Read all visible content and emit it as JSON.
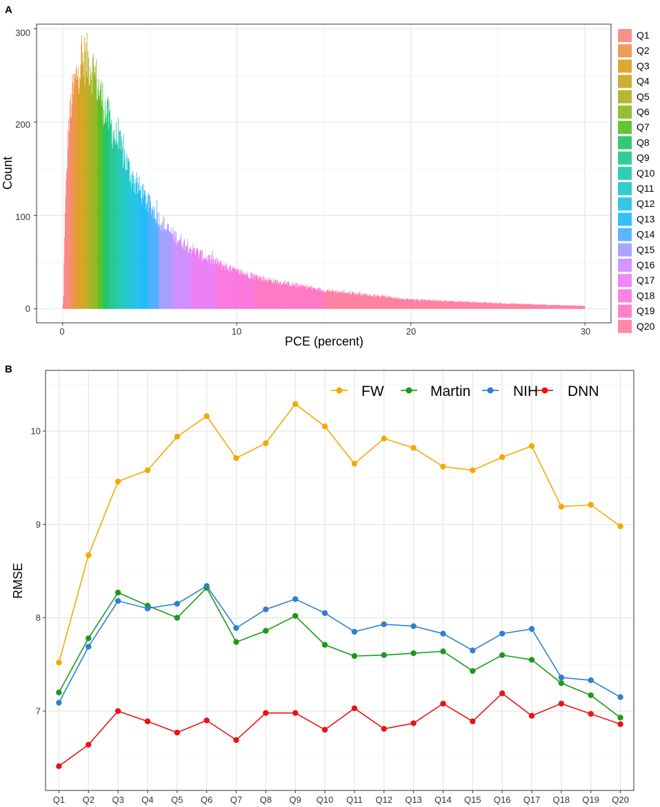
{
  "chart_data": [
    {
      "panel": "A",
      "type": "histogram",
      "xlabel": "PCE (percent)",
      "ylabel": "Count",
      "xlim": [
        -1.5,
        31.5
      ],
      "ylim": [
        -15,
        305
      ],
      "xticks": [
        0,
        10,
        20,
        30
      ],
      "yticks": [
        0,
        100,
        200,
        300
      ],
      "legend_entries": [
        "Q1",
        "Q2",
        "Q3",
        "Q4",
        "Q5",
        "Q6",
        "Q7",
        "Q8",
        "Q9",
        "Q10",
        "Q11",
        "Q12",
        "Q13",
        "Q14",
        "Q15",
        "Q16",
        "Q17",
        "Q18",
        "Q19",
        "Q20"
      ],
      "legend_colors": [
        "#F8766D",
        "#EA8331",
        "#D89000",
        "#C09B00",
        "#A3A500",
        "#7CAE00",
        "#39B600",
        "#00BB4E",
        "#00BF7D",
        "#00C1A3",
        "#00BFC4",
        "#00BAE0",
        "#00B0F6",
        "#35A2FF",
        "#9590FF",
        "#C77CFF",
        "#E76BF3",
        "#FA62DB",
        "#FF62BC",
        "#FF6C91"
      ],
      "quantile_breaks": [
        0,
        0.45,
        0.8,
        1.1,
        1.4,
        1.7,
        2.0,
        2.3,
        2.65,
        3.0,
        3.4,
        3.85,
        4.35,
        4.9,
        5.5,
        6.3,
        7.3,
        8.8,
        11.0,
        15.0,
        30.0
      ],
      "bin_width_percent": 0.03,
      "distribution": {
        "x": [
          0,
          0.05,
          0.1,
          0.3,
          0.5,
          0.8,
          1.0,
          1.3,
          1.5,
          1.8,
          2.0,
          2.5,
          3.0,
          3.5,
          4.0,
          5.0,
          6.0,
          7.0,
          8.0,
          10.0,
          12.0,
          15.0,
          20.0,
          25.0,
          30.0
        ],
        "count": [
          0,
          15,
          80,
          185,
          222,
          250,
          262,
          268,
          265,
          255,
          240,
          210,
          185,
          165,
          140,
          110,
          85,
          70,
          57,
          40,
          30,
          20,
          10,
          6,
          3
        ]
      }
    },
    {
      "panel": "B",
      "type": "line",
      "xlabel": "",
      "ylabel": "RMSE",
      "categories": [
        "Q1",
        "Q2",
        "Q3",
        "Q4",
        "Q5",
        "Q6",
        "Q7",
        "Q8",
        "Q9",
        "Q10",
        "Q11",
        "Q12",
        "Q13",
        "Q14",
        "Q15",
        "Q16",
        "Q17",
        "Q18",
        "Q19",
        "Q20"
      ],
      "ylim": [
        6.15,
        10.65
      ],
      "yticks": [
        7,
        8,
        9,
        10
      ],
      "legend_position": "top-right",
      "series": [
        {
          "name": "FW",
          "color": "#F5A800",
          "values": [
            7.52,
            8.67,
            9.46,
            9.58,
            9.94,
            10.16,
            9.71,
            9.87,
            10.29,
            10.05,
            9.65,
            9.92,
            9.82,
            9.62,
            9.58,
            9.72,
            9.84,
            9.19,
            9.21,
            8.98
          ]
        },
        {
          "name": "Martin",
          "color": "#1A9A1A",
          "values": [
            7.2,
            7.78,
            8.27,
            8.13,
            8.0,
            8.32,
            7.74,
            7.86,
            8.02,
            7.71,
            7.59,
            7.6,
            7.62,
            7.64,
            7.43,
            7.6,
            7.55,
            7.3,
            7.17,
            6.93
          ]
        },
        {
          "name": "NIH",
          "color": "#2E7FD2",
          "values": [
            7.09,
            7.69,
            8.18,
            8.1,
            8.15,
            8.34,
            7.89,
            8.09,
            8.2,
            8.05,
            7.85,
            7.93,
            7.91,
            7.83,
            7.65,
            7.83,
            7.88,
            7.36,
            7.33,
            7.15
          ]
        },
        {
          "name": "DNN",
          "color": "#EE1111",
          "values": [
            6.41,
            6.64,
            7.0,
            6.89,
            6.77,
            6.9,
            6.69,
            6.98,
            6.98,
            6.8,
            7.03,
            6.81,
            6.87,
            7.08,
            6.89,
            7.19,
            6.95,
            7.08,
            6.97,
            6.86
          ]
        }
      ]
    }
  ],
  "panel_labels": {
    "a": "A",
    "b": "B"
  },
  "axis_a": {
    "xlabel": "PCE (percent)",
    "ylabel": "Count",
    "xtick_labels": [
      "0",
      "10",
      "20",
      "30"
    ],
    "ytick_labels": [
      "0",
      "100",
      "200",
      "300"
    ]
  },
  "axis_b": {
    "ylabel": "RMSE",
    "ytick_labels": [
      "7",
      "8",
      "9",
      "10"
    ]
  }
}
